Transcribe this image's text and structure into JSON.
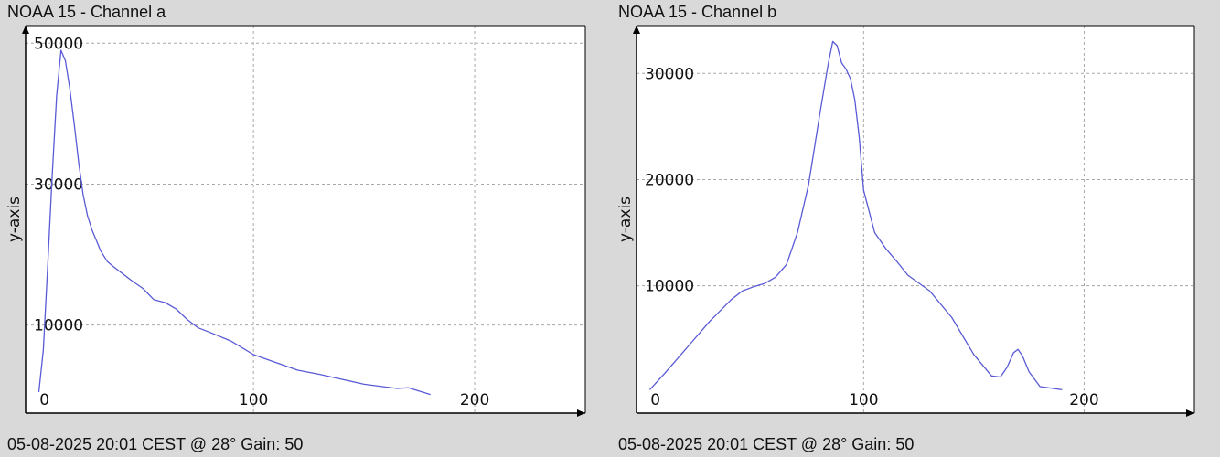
{
  "colors": {
    "background": "#d9d9d9",
    "plot_bg": "#ffffff",
    "line": "#5a5ad6",
    "grid": "#a8a8a8",
    "axis": "#000000"
  },
  "chart_data": [
    {
      "type": "line",
      "title": "NOAA 15 - Channel a",
      "footer": "05-08-2025 20:01 CEST @ 28° Gain: 50",
      "xlabel": "",
      "ylabel": "y-axis",
      "xlim": [
        -3,
        250
      ],
      "ylim": [
        -2500,
        52500
      ],
      "grid": true,
      "x_ticks": [
        0,
        100,
        200
      ],
      "y_ticks": [
        10000,
        30000,
        50000
      ],
      "series": [
        {
          "x": [
            3,
            5,
            7,
            9,
            11,
            13,
            15,
            17,
            19,
            21,
            23,
            25,
            27,
            29,
            31,
            34,
            37,
            40,
            45,
            50,
            55,
            60,
            65,
            70,
            75,
            80,
            90,
            100,
            110,
            120,
            130,
            140,
            150,
            160,
            165,
            170,
            180
          ],
          "y": [
            500,
            6500,
            18500,
            31000,
            42500,
            49000,
            47500,
            43500,
            38500,
            33000,
            28500,
            25500,
            23500,
            22000,
            20500,
            19000,
            18200,
            17500,
            16300,
            15200,
            13600,
            13200,
            12300,
            10800,
            9600,
            9000,
            7700,
            5800,
            4700,
            3600,
            3000,
            2300,
            1600,
            1200,
            1000,
            1100,
            150
          ]
        }
      ]
    },
    {
      "type": "line",
      "title": "NOAA 15 - Channel b",
      "footer": "05-08-2025 20:01 CEST @ 28° Gain: 50",
      "xlabel": "",
      "ylabel": "y-axis",
      "xlim": [
        -3,
        250
      ],
      "ylim": [
        -2000,
        34500
      ],
      "grid": true,
      "x_ticks": [
        0,
        100,
        200
      ],
      "y_ticks": [
        10000,
        20000,
        30000
      ],
      "series": [
        {
          "x": [
            3,
            10,
            20,
            30,
            40,
            45,
            50,
            55,
            60,
            65,
            70,
            75,
            80,
            84,
            86,
            88,
            90,
            92,
            94,
            96,
            98,
            100,
            105,
            110,
            115,
            120,
            130,
            140,
            150,
            158,
            162,
            165,
            168,
            170,
            172,
            175,
            180,
            190
          ],
          "y": [
            200,
            1800,
            4200,
            6600,
            8700,
            9500,
            9900,
            10200,
            10800,
            12000,
            15000,
            19500,
            26000,
            31000,
            33000,
            32600,
            31000,
            30400,
            29500,
            27500,
            24000,
            19000,
            15000,
            13500,
            12300,
            11000,
            9500,
            7000,
            3500,
            1500,
            1400,
            2300,
            3700,
            4000,
            3400,
            1900,
            500,
            200
          ]
        }
      ]
    }
  ]
}
